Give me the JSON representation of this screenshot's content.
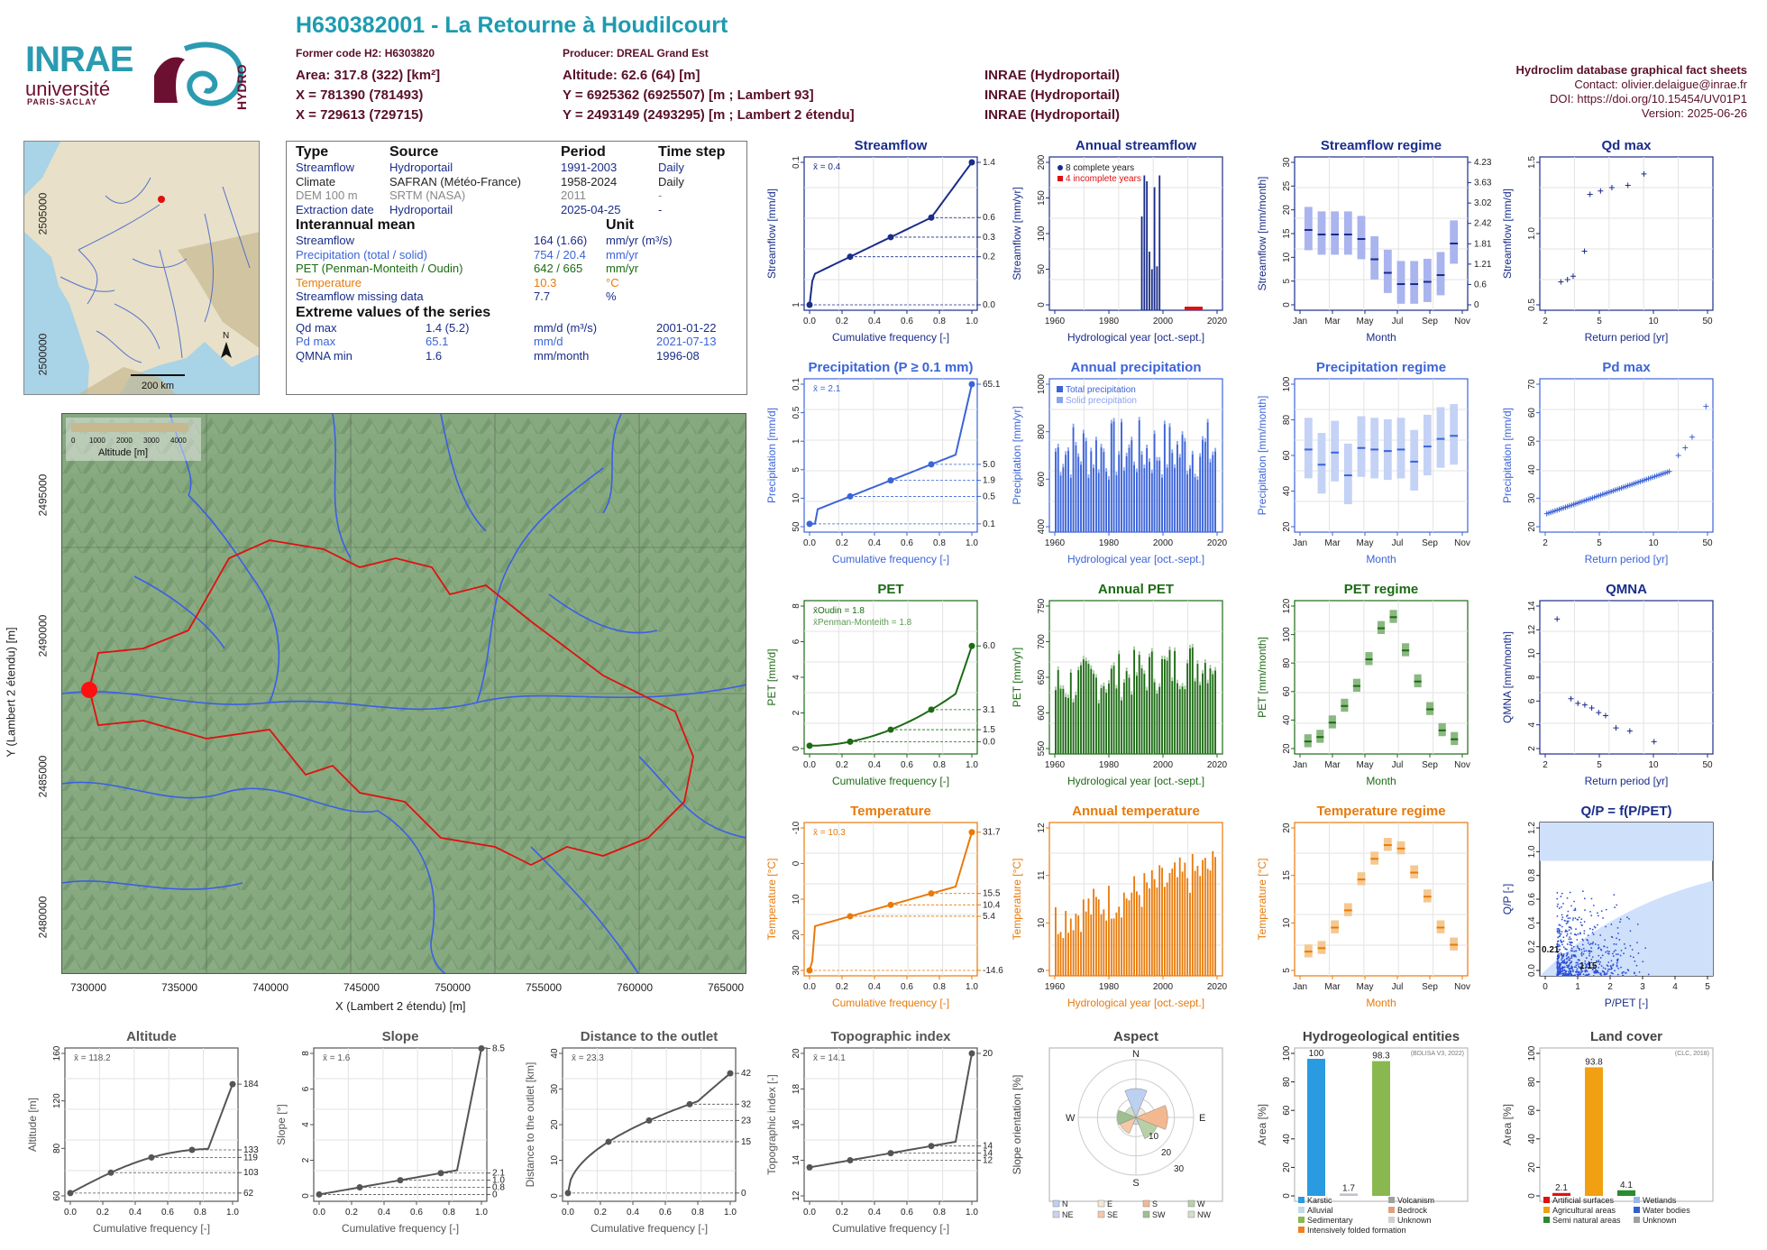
{
  "header": {
    "title": "H630382001 - La Retourne à Houdilcourt",
    "former_code": "Former code H2: H6303820",
    "producer": "Producer: DREAL Grand Est",
    "area": "Area: 317.8 (322) [km²]",
    "altitude": "Altitude: 62.6 (64) [m]",
    "x93": "X = 781390 (781493)",
    "y93": "Y = 6925362 (6925507) [m ; Lambert 93]",
    "x2": "X = 729613 (729715)",
    "y2": "Y = 2493149 (2493295) [m ; Lambert 2 étendu]",
    "src1": "INRAE (Hydroportail)",
    "src2": "INRAE (Hydroportail)",
    "src3": "INRAE (Hydroportail)"
  },
  "logos": {
    "inrae": "INRAE",
    "universite": "université",
    "paris_saclay": "PARIS-SACLAY",
    "hydro": "HYDRO"
  },
  "right_info": {
    "title": "Hydroclim database graphical fact sheets",
    "contact": "Contact: olivier.delaigue@inrae.fr",
    "doi": "DOI: https://doi.org/10.15454/UV01P1",
    "version": "Version: 2025-06-26"
  },
  "mini_map": {
    "scale": "200 km",
    "north": "N"
  },
  "info_table": {
    "headers": [
      "Type",
      "Source",
      "Period",
      "Time step"
    ],
    "rows": [
      [
        "Streamflow",
        "Hydroportail",
        "1991-2003",
        "Daily"
      ],
      [
        "Climate",
        "SAFRAN (Météo-France)",
        "1958-2024",
        "Daily"
      ],
      [
        "DEM 100 m",
        "SRTM (NASA)",
        "2011",
        "-"
      ],
      [
        "Extraction date",
        "Hydroportail",
        "2025-04-25",
        "-"
      ]
    ],
    "interannual_title": "Interannual mean",
    "unit_title": "Unit",
    "interannual": [
      [
        "Streamflow",
        "164 (1.66)",
        "mm/yr (m³/s)"
      ],
      [
        "Precipitation (total / solid)",
        "754 / 20.4",
        "mm/yr"
      ],
      [
        "PET (Penman-Monteith / Oudin)",
        "642 / 665",
        "mm/yr"
      ],
      [
        "Temperature",
        "10.3",
        "°C"
      ],
      [
        "Streamflow missing data",
        "7.7",
        "%"
      ]
    ],
    "extreme_title": "Extreme values of the series",
    "extremes": [
      [
        "Qd max",
        "1.4 (5.2)",
        "mm/d (m³/s)",
        "2001-01-22"
      ],
      [
        "Pd max",
        "65.1",
        "mm/d",
        "2021-07-13"
      ],
      [
        "QMNA min",
        "1.6",
        "mm/month",
        "1996-08"
      ]
    ]
  },
  "big_map": {
    "legend_title": "Altitude [m]",
    "legend_ticks": [
      "0",
      "1000",
      "2000",
      "3000",
      "4000"
    ],
    "xlabel": "X (Lambert 2 étendu) [m]",
    "ylabel": "Y (Lambert 2 étendu) [m]",
    "xticks": [
      "730000",
      "735000",
      "740000",
      "745000",
      "750000",
      "755000",
      "760000",
      "765000"
    ],
    "yticks": [
      "2480000",
      "2485000",
      "2490000",
      "2495000",
      "2500000",
      "2505000"
    ]
  },
  "colors": {
    "stream": "#1a2d8a",
    "prec": "#3c64d8",
    "pet": "#1c6b14",
    "temp": "#e87a0a",
    "gray": "#555555",
    "teal": "#1d9bb0",
    "maroon": "#6b1030"
  },
  "chart_data": [
    {
      "id": "streamflow",
      "type": "line",
      "title": "Streamflow",
      "xlabel": "Cumulative frequency [-]",
      "ylabel": "Streamflow [mm/d]",
      "mean_label": "x̄ = 0.4",
      "right_ticks": [
        "1.4",
        "0.6",
        "0.3",
        "0.2",
        "0.0"
      ],
      "left_ticks": [
        "1",
        "0.1"
      ],
      "xticks": [
        "0.0",
        "0.2",
        "0.4",
        "0.6",
        "0.8",
        "1.0"
      ]
    },
    {
      "id": "annual_streamflow",
      "type": "bar",
      "title": "Annual streamflow",
      "xlabel": "Hydrological year [oct.-sept.]",
      "ylabel": "Streamflow [mm/yr]",
      "legend": [
        "8 complete years",
        "4 incomplete years"
      ],
      "yticks": [
        "0",
        "50",
        "100",
        "150",
        "200"
      ],
      "xticks": [
        "1960",
        "1980",
        "2000",
        "2020"
      ],
      "values": [
        160,
        230,
        220,
        100,
        70,
        210,
        75,
        230
      ]
    },
    {
      "id": "streamflow_regime",
      "type": "bar",
      "title": "Streamflow regime",
      "xlabel": "Month",
      "ylabel": "Streamflow [mm/month]",
      "xticks": [
        "Jan",
        "Mar",
        "May",
        "Jul",
        "Sep",
        "Nov"
      ],
      "yticks": [
        "0",
        "5",
        "10",
        "15",
        "20",
        "25",
        "30"
      ],
      "right_ticks": [
        "0",
        "0.6",
        "1.21",
        "1.81",
        "2.42",
        "3.02",
        "3.63",
        "4.23"
      ],
      "medians": [
        17,
        16,
        16,
        16,
        15,
        10.5,
        7.5,
        5,
        5,
        5.5,
        7,
        14
      ]
    },
    {
      "id": "qd_max",
      "type": "scatter",
      "title": "Qd max",
      "xlabel": "Return period [yr]",
      "ylabel": "Streamflow [mm/d]",
      "xticks": [
        "2",
        "5",
        "10",
        "50"
      ],
      "yticks": [
        "0.5",
        "1.0",
        "1.5"
      ],
      "x": [
        1.1,
        1.3,
        1.5,
        2,
        2.3,
        3,
        4,
        6,
        9
      ],
      "y": [
        0.45,
        0.47,
        0.5,
        0.72,
        1.22,
        1.25,
        1.28,
        1.3,
        1.4
      ]
    },
    {
      "id": "precipitation",
      "type": "line",
      "title": "Precipitation (P ≥ 0.1 mm)",
      "xlabel": "Cumulative frequency [-]",
      "ylabel": "Precipitation [mm/d]",
      "mean_label": "x̄ = 2.1",
      "right_ticks": [
        "65.1",
        "5.0",
        "1.9",
        "0.5",
        "0.1"
      ],
      "left_ticks": [
        "50",
        "10",
        "5",
        "1",
        "0.5",
        "0.1"
      ],
      "xticks": [
        "0.0",
        "0.2",
        "0.4",
        "0.6",
        "0.8",
        "1.0"
      ]
    },
    {
      "id": "annual_precipitation",
      "type": "bar",
      "title": "Annual precipitation",
      "xlabel": "Hydrological year [oct.-sept.]",
      "ylabel": "Precipitation [mm/yr]",
      "legend": [
        "Total precipitation",
        "Solid precipitation"
      ],
      "yticks": [
        "400",
        "600",
        "800",
        "1000"
      ],
      "xticks": [
        "1960",
        "1980",
        "2000",
        "2020"
      ]
    },
    {
      "id": "precipitation_regime",
      "type": "bar",
      "title": "Precipitation regime",
      "xlabel": "Month",
      "ylabel": "Precipitation [mm/month]",
      "xticks": [
        "Jan",
        "Mar",
        "May",
        "Jul",
        "Sep",
        "Nov"
      ],
      "yticks": [
        "20",
        "40",
        "60",
        "80",
        "100"
      ],
      "medians": [
        62,
        52,
        60,
        45,
        63,
        62,
        61,
        62,
        54,
        64,
        69,
        71
      ]
    },
    {
      "id": "pd_max",
      "type": "scatter",
      "title": "Pd max",
      "xlabel": "Return period [yr]",
      "ylabel": "Precipitation [mm/d]",
      "xticks": [
        "2",
        "5",
        "10",
        "50"
      ],
      "yticks": [
        "20",
        "30",
        "40",
        "50",
        "60",
        "70"
      ]
    },
    {
      "id": "pet",
      "type": "line",
      "title": "PET",
      "xlabel": "Cumulative frequency [-]",
      "ylabel": "PET [mm/d]",
      "mean_oudin": "x̄Oudin = 1.8",
      "mean_pm": "x̄Penman-Monteith = 1.8",
      "right_ticks": [
        "6.0",
        "3.1",
        "1.5",
        "0.0"
      ],
      "left_ticks": [
        "0",
        "2",
        "4",
        "6",
        "8"
      ],
      "xticks": [
        "0.0",
        "0.2",
        "0.4",
        "0.6",
        "0.8",
        "1.0"
      ]
    },
    {
      "id": "annual_pet",
      "type": "bar",
      "title": "Annual PET",
      "xlabel": "Hydrological year [oct.-sept.]",
      "ylabel": "PET [mm/yr]",
      "yticks": [
        "550",
        "600",
        "650",
        "700",
        "750"
      ],
      "xticks": [
        "1960",
        "1980",
        "2000",
        "2020"
      ]
    },
    {
      "id": "pet_regime",
      "type": "bar",
      "title": "PET regime",
      "xlabel": "Month",
      "ylabel": "PET [mm/month]",
      "xticks": [
        "Jan",
        "Mar",
        "May",
        "Jul",
        "Sep",
        "Nov"
      ],
      "yticks": [
        "20",
        "40",
        "60",
        "80",
        "100",
        "120"
      ],
      "medians": [
        8,
        12,
        25,
        40,
        58,
        82,
        110,
        120,
        90,
        62,
        37,
        18,
        10
      ]
    },
    {
      "id": "qmna",
      "type": "scatter",
      "title": "QMNA",
      "xlabel": "Return period [yr]",
      "ylabel": "QMNA [mm/month]",
      "xticks": [
        "2",
        "5",
        "10",
        "50"
      ],
      "yticks": [
        "2",
        "4",
        "6",
        "8",
        "10",
        "12",
        "14"
      ]
    },
    {
      "id": "temperature",
      "type": "line",
      "title": "Temperature",
      "xlabel": "Cumulative frequency [-]",
      "ylabel": "Temperature [°C]",
      "mean_label": "x̄ = 10.3",
      "right_ticks": [
        "31.7",
        "15.5",
        "10.4",
        "5.4",
        "-14.6"
      ],
      "left_ticks": [
        "30",
        "20",
        "10",
        "0",
        "-10"
      ],
      "xticks": [
        "0.0",
        "0.2",
        "0.4",
        "0.6",
        "0.8",
        "1.0"
      ]
    },
    {
      "id": "annual_temperature",
      "type": "bar",
      "title": "Annual temperature",
      "xlabel": "Hydrological year [oct.-sept.]",
      "ylabel": "Temperature [°C]",
      "yticks": [
        "9",
        "10",
        "11",
        "12"
      ],
      "xticks": [
        "1960",
        "1980",
        "2000",
        "2020"
      ]
    },
    {
      "id": "temperature_regime",
      "type": "bar",
      "title": "Temperature regime",
      "xlabel": "Month",
      "ylabel": "Temperature [°C]",
      "xticks": [
        "Jan",
        "Mar",
        "May",
        "Jul",
        "Sep",
        "Nov"
      ],
      "yticks": [
        "5",
        "10",
        "15",
        "20"
      ],
      "medians": [
        3,
        3.5,
        6.5,
        9,
        13.5,
        16.5,
        18.5,
        18,
        14.5,
        11,
        6.5,
        4
      ]
    },
    {
      "id": "qp_ppet",
      "type": "scatter",
      "title": "Q/P = f(P/PET)",
      "xlabel": "P/PET [-]",
      "ylabel": "Q/P [-]",
      "xticks": [
        "0",
        "1",
        "2",
        "3",
        "4",
        "5"
      ],
      "yticks": [
        "0.0",
        "0.2",
        "0.4",
        "0.6",
        "0.8",
        "1.0",
        "1.2"
      ],
      "annot1": "0.21",
      "annot2": "1.15"
    },
    {
      "id": "altitude",
      "type": "line",
      "title": "Altitude",
      "xlabel": "Cumulative frequency [-]",
      "ylabel": "Altitude [m]",
      "mean_label": "x̄ = 118.2",
      "right_ticks": [
        "184",
        "133",
        "119",
        "103",
        "62"
      ],
      "left_ticks": [
        "60",
        "80",
        "120",
        "160"
      ],
      "xticks": [
        "0.0",
        "0.2",
        "0.4",
        "0.6",
        "0.8",
        "1.0"
      ]
    },
    {
      "id": "slope",
      "type": "line",
      "title": "Slope",
      "xlabel": "Cumulative frequency [-]",
      "ylabel": "Slope [°]",
      "mean_label": "x̄ = 1.6",
      "right_ticks": [
        "8.5",
        "2.1",
        "1.0",
        "0.8",
        "0"
      ],
      "left_ticks": [
        "0",
        "2",
        "4",
        "6",
        "8"
      ],
      "xticks": [
        "0.0",
        "0.2",
        "0.4",
        "0.6",
        "0.8",
        "1.0"
      ]
    },
    {
      "id": "distance",
      "type": "line",
      "title": "Distance to the outlet",
      "xlabel": "Cumulative frequency [-]",
      "ylabel": "Distance to the outlet [km]",
      "mean_label": "x̄ = 23.3",
      "right_ticks": [
        "42",
        "32",
        "23",
        "15",
        "0"
      ],
      "left_ticks": [
        "0",
        "10",
        "20",
        "30",
        "40"
      ],
      "xticks": [
        "0.0",
        "0.2",
        "0.4",
        "0.6",
        "0.8",
        "1.0"
      ]
    },
    {
      "id": "topo_index",
      "type": "line",
      "title": "Topographic index",
      "xlabel": "Cumulative frequency [-]",
      "ylabel": "Topographic index [-]",
      "mean_label": "x̄ = 14.1",
      "right_ticks": [
        "20",
        "14",
        "14",
        "12"
      ],
      "left_ticks": [
        "12",
        "14",
        "16",
        "18",
        "20"
      ],
      "xticks": [
        "0.0",
        "0.2",
        "0.4",
        "0.6",
        "0.8",
        "1.0"
      ]
    },
    {
      "id": "aspect",
      "type": "pie",
      "title": "Aspect",
      "ylabel": "Slope orientation [%]",
      "directions": [
        "N",
        "E",
        "S",
        "W"
      ],
      "rings": [
        "10",
        "20",
        "30"
      ],
      "legend": [
        "N",
        "E",
        "S",
        "W",
        "NE",
        "SE",
        "SW",
        "NW"
      ]
    },
    {
      "id": "hydrogeology",
      "type": "bar",
      "title": "Hydrogeological entities",
      "ylabel": "Area [%]",
      "source": "(BDLISA V3, 2022)",
      "values": [
        100,
        1.7,
        98.3
      ],
      "value_labels": [
        "100",
        "1.7",
        "98.3"
      ],
      "yticks": [
        "0",
        "20",
        "40",
        "60",
        "80",
        "100"
      ],
      "legend": [
        "Karstic",
        "Volcanism",
        "Alluvial",
        "Bedrock",
        "Sedimentary",
        "Unknown",
        "Intensively folded formation"
      ]
    },
    {
      "id": "land_cover",
      "type": "bar",
      "title": "Land cover",
      "ylabel": "Area [%]",
      "source": "(CLC, 2018)",
      "values": [
        2.1,
        93.8,
        4.1
      ],
      "value_labels": [
        "2.1",
        "93.8",
        "4.1"
      ],
      "yticks": [
        "0",
        "20",
        "40",
        "60",
        "80",
        "100"
      ],
      "legend": [
        "Artificial surfaces",
        "Wetlands",
        "Agricultural areas",
        "Water bodies",
        "Semi natural areas",
        "Unknown"
      ]
    }
  ]
}
